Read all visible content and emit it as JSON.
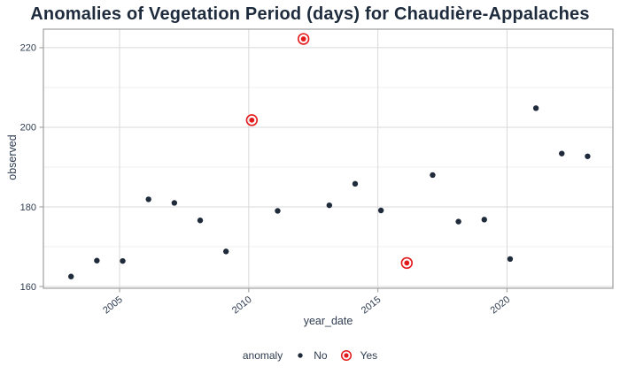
{
  "title": "Anomalies of Vegetation Period (days) for Chaudière-Appalaches",
  "x_axis": {
    "label": "year_date",
    "ticks": [
      2005,
      2010,
      2015,
      2020
    ]
  },
  "y_axis": {
    "label": "observed",
    "ticks": [
      160,
      180,
      200,
      220
    ],
    "minor_ticks": [
      170,
      190,
      210
    ]
  },
  "legend": {
    "title": "anomaly",
    "items": [
      {
        "label": "No",
        "marker": "dot-icon"
      },
      {
        "label": "Yes",
        "marker": "ring-dot-icon"
      }
    ]
  },
  "colors": {
    "point": "#1F2B3B",
    "anomaly": "#E31A1C",
    "title_text": "#1E2B3C",
    "axis_text": "#2F3C50",
    "grid_major": "#D9D9D9",
    "grid_minor": "#ECECEC",
    "panel_border": "#A6A6A6",
    "background": "#FFFFFF"
  },
  "chart_data": {
    "type": "scatter",
    "title": "Anomalies of Vegetation Period (days) for Chaudière-Appalaches",
    "xlabel": "year_date",
    "ylabel": "observed",
    "x": [
      2003,
      2004,
      2005,
      2006,
      2007,
      2008,
      2009,
      2010,
      2011,
      2012,
      2013,
      2014,
      2015,
      2016,
      2017,
      2018,
      2019,
      2020,
      2021,
      2022,
      2023
    ],
    "y": [
      162.5,
      166.5,
      166.4,
      181.9,
      181.0,
      176.6,
      168.8,
      201.8,
      179.0,
      222.2,
      180.4,
      185.8,
      179.1,
      165.9,
      188.0,
      176.3,
      176.8,
      166.9,
      204.8,
      193.4,
      192.7
    ],
    "anomaly": [
      false,
      false,
      false,
      false,
      false,
      false,
      false,
      true,
      false,
      true,
      false,
      false,
      false,
      true,
      false,
      false,
      false,
      false,
      false,
      false,
      false
    ],
    "x_point_offset": 0.12,
    "xlim": [
      2002.05,
      2024.1
    ],
    "ylim": [
      159.55,
      224.65
    ],
    "x_tick_values": [
      2005,
      2010,
      2015,
      2020
    ],
    "y_tick_values": [
      160,
      180,
      200,
      220
    ],
    "y_minor_gridlines": [
      170,
      190,
      210
    ],
    "grid": "on",
    "legend_position": "bottom"
  }
}
